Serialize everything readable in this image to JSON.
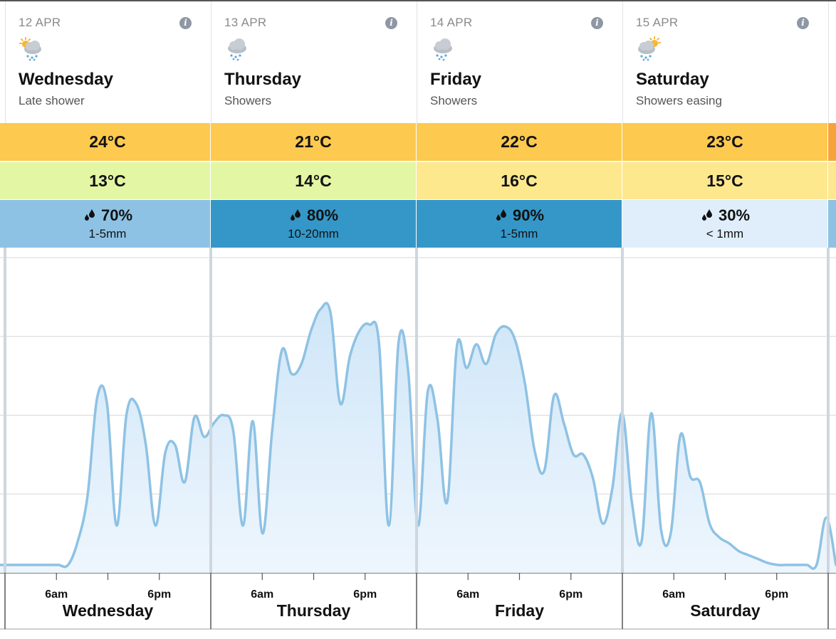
{
  "days": [
    {
      "date": "12 APR",
      "name": "Wednesday",
      "desc": "Late shower",
      "icon": "sun-cloud-rain-icon",
      "max": "24°C",
      "min": "13°C",
      "rain_chance": "70%",
      "rain_amount": "1-5mm",
      "max_color": "#fdc94f",
      "min_color": "#e3f6a4",
      "rain_color": "#8ec2e4",
      "axis_label": "Wednesday"
    },
    {
      "date": "13 APR",
      "name": "Thursday",
      "desc": "Showers",
      "icon": "cloud-rain-icon",
      "max": "21°C",
      "min": "14°C",
      "rain_chance": "80%",
      "rain_amount": "10-20mm",
      "max_color": "#fdc94f",
      "min_color": "#e3f6a4",
      "rain_color": "#3497c8",
      "axis_label": "Thursday"
    },
    {
      "date": "14 APR",
      "name": "Friday",
      "desc": "Showers",
      "icon": "cloud-rain-icon",
      "max": "22°C",
      "min": "16°C",
      "rain_chance": "90%",
      "rain_amount": "1-5mm",
      "max_color": "#fdc94f",
      "min_color": "#fde88e",
      "rain_color": "#3497c8",
      "axis_label": "Friday"
    },
    {
      "date": "15 APR",
      "name": "Saturday",
      "desc": "Showers easing",
      "icon": "sun-cloud-rain-icon",
      "max": "23°C",
      "min": "15°C",
      "rain_chance": "30%",
      "rain_amount": "< 1mm",
      "max_color": "#fdc94f",
      "min_color": "#fde88e",
      "rain_color": "#dfeefa",
      "axis_label": "Saturday"
    }
  ],
  "tick_labels": [
    "6am",
    "6pm"
  ],
  "colors": {
    "line": "#8ec2e4",
    "fill": "#d9ebf8",
    "grid": "#d7d7d7",
    "day_divider": "#cfd6dd",
    "peek_max": "#f8a33a",
    "peek_min": "#fde88e",
    "peek_rain": "#8ec2e4"
  },
  "chart_data": {
    "type": "area",
    "series": [
      {
        "values": [
          0.2,
          0.2,
          0.2,
          0.2,
          0.2,
          0.2,
          0.2,
          0.2,
          0.8,
          1.95,
          4.45,
          4.3,
          1.2,
          4.0,
          4.3,
          3.25,
          1.2,
          3.05,
          3.25,
          2.3,
          3.95,
          3.45,
          3.8,
          4.0,
          3.6,
          1.2,
          3.85,
          1.0,
          3.6,
          5.65,
          5.05,
          5.3,
          6.15,
          6.7,
          6.6,
          4.3,
          5.5,
          6.15,
          6.3,
          5.8,
          1.2,
          5.85,
          5.1,
          1.2,
          4.6,
          3.9,
          1.8,
          5.75,
          5.2,
          5.8,
          5.3,
          6.05,
          6.25,
          5.9,
          4.8,
          3.1,
          2.6,
          4.5,
          3.8,
          3.0,
          3.0,
          2.4,
          1.25,
          2.15,
          4.05,
          1.8,
          0.8,
          4.05,
          1.1,
          1.0,
          3.5,
          2.45,
          2.3,
          1.25,
          0.9,
          0.75,
          0.55,
          0.45,
          0.35,
          0.25,
          0.2,
          0.2,
          0.2,
          0.2,
          0.2,
          1.4,
          0.2
        ]
      }
    ],
    "ylim": [
      0,
      8
    ],
    "grid": true,
    "days": [
      "Wednesday",
      "Thursday",
      "Friday",
      "Saturday"
    ]
  }
}
